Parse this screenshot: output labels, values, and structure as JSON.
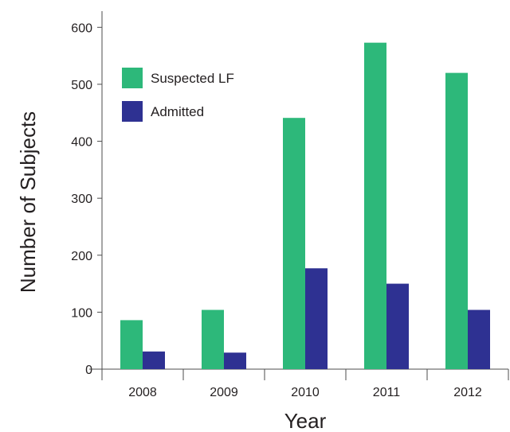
{
  "chart_data": {
    "type": "bar",
    "title": "",
    "xlabel": "Year",
    "ylabel": "Number of Subjects",
    "categories": [
      "2008",
      "2009",
      "2010",
      "2011",
      "2012"
    ],
    "series": [
      {
        "name": "Suspected LF",
        "color": "#2db87a",
        "values": [
          86,
          104,
          441,
          573,
          520
        ]
      },
      {
        "name": "Admitted",
        "color": "#2e3192",
        "values": [
          31,
          29,
          177,
          150,
          104
        ]
      }
    ],
    "ylim": [
      0,
      620
    ],
    "yticks": [
      0,
      100,
      200,
      300,
      400,
      500,
      600
    ],
    "grid": false,
    "legend_position": "top-left"
  }
}
